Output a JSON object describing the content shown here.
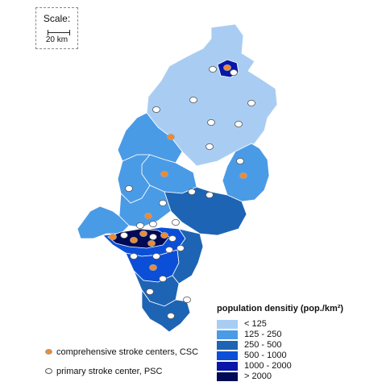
{
  "scale": {
    "title": "Scale:",
    "distance": "20 km"
  },
  "legend": {
    "title": "population densitiy (pop./km²)",
    "classes": [
      {
        "label": "< 125",
        "color": "#a9cdf2"
      },
      {
        "label": "125 - 250",
        "color": "#4a9be6"
      },
      {
        "label": "250 - 500",
        "color": "#1e64b4"
      },
      {
        "label": "500 - 1000",
        "color": "#0b4fd8"
      },
      {
        "label": "1000 - 2000",
        "color": "#0a16a8"
      },
      {
        "label": "> 2000",
        "color": "#000a55"
      }
    ]
  },
  "site_types": {
    "csc": {
      "label": "comprehensive stroke centers, CSC",
      "fill": "#f08a2c",
      "stroke": "#9aa4b8",
      "icon": "orange-dot-icon"
    },
    "psc": {
      "label": "primary stroke center, PSC",
      "fill": "#ffffff",
      "stroke": "#555555",
      "icon": "white-dot-icon"
    }
  }
}
